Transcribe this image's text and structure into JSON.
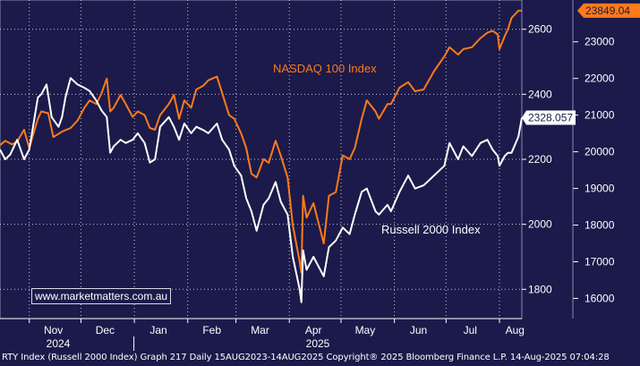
{
  "chart_data": {
    "type": "line",
    "title": "",
    "x_months": [
      "Nov",
      "Dec",
      "Jan",
      "Feb",
      "Mar",
      "Apr",
      "May",
      "Jun",
      "Jul",
      "Aug"
    ],
    "x_years": [
      "2024",
      "2025"
    ],
    "date_range": [
      "2024-10-15",
      "2025-08-14"
    ],
    "y_left": {
      "ticks": [
        1800,
        2000,
        2200,
        2400,
        2600
      ],
      "range": [
        1710,
        2690
      ]
    },
    "y_right": {
      "ticks": [
        16000,
        17000,
        18000,
        19000,
        20000,
        21000,
        22000,
        23000
      ],
      "range": [
        15450,
        24140
      ]
    },
    "grid": true,
    "series": [
      {
        "name": "NASDAQ 100 Index",
        "axis": "right",
        "color": "#ff7a1a",
        "last_value_label": "23849.04",
        "points": [
          [
            "2024-10-15",
            20180
          ],
          [
            "2024-10-18",
            20300
          ],
          [
            "2024-10-22",
            20200
          ],
          [
            "2024-10-25",
            20280
          ],
          [
            "2024-10-29",
            20600
          ],
          [
            "2024-11-01",
            20100
          ],
          [
            "2024-11-06",
            20900
          ],
          [
            "2024-11-08",
            21100
          ],
          [
            "2024-11-12",
            21050
          ],
          [
            "2024-11-15",
            20400
          ],
          [
            "2024-11-20",
            20550
          ],
          [
            "2024-11-25",
            20650
          ],
          [
            "2024-11-29",
            20850
          ],
          [
            "2024-12-03",
            21200
          ],
          [
            "2024-12-06",
            21400
          ],
          [
            "2024-12-10",
            21300
          ],
          [
            "2024-12-13",
            21600
          ],
          [
            "2024-12-16",
            22000
          ],
          [
            "2024-12-18",
            21100
          ],
          [
            "2024-12-20",
            21200
          ],
          [
            "2024-12-24",
            21550
          ],
          [
            "2024-12-27",
            21300
          ],
          [
            "2024-12-31",
            20950
          ],
          [
            "2025-01-03",
            21100
          ],
          [
            "2025-01-07",
            21000
          ],
          [
            "2025-01-10",
            20650
          ],
          [
            "2025-01-13",
            20600
          ],
          [
            "2025-01-16",
            21000
          ],
          [
            "2025-01-21",
            21300
          ],
          [
            "2025-01-24",
            21550
          ],
          [
            "2025-01-27",
            20900
          ],
          [
            "2025-01-30",
            21400
          ],
          [
            "2025-02-03",
            21200
          ],
          [
            "2025-02-06",
            21700
          ],
          [
            "2025-02-10",
            21800
          ],
          [
            "2025-02-13",
            21950
          ],
          [
            "2025-02-18",
            22050
          ],
          [
            "2025-02-21",
            21600
          ],
          [
            "2025-02-25",
            21000
          ],
          [
            "2025-02-28",
            20900
          ],
          [
            "2025-03-04",
            20500
          ],
          [
            "2025-03-07",
            20100
          ],
          [
            "2025-03-10",
            19400
          ],
          [
            "2025-03-13",
            19300
          ],
          [
            "2025-03-17",
            19800
          ],
          [
            "2025-03-20",
            19700
          ],
          [
            "2025-03-24",
            20300
          ],
          [
            "2025-03-27",
            19900
          ],
          [
            "2025-03-31",
            19300
          ],
          [
            "2025-04-03",
            18000
          ],
          [
            "2025-04-07",
            17000
          ],
          [
            "2025-04-08",
            16700
          ],
          [
            "2025-04-09",
            18800
          ],
          [
            "2025-04-11",
            18200
          ],
          [
            "2025-04-15",
            18600
          ],
          [
            "2025-04-21",
            17500
          ],
          [
            "2025-04-24",
            18800
          ],
          [
            "2025-04-28",
            18900
          ],
          [
            "2025-05-02",
            19900
          ],
          [
            "2025-05-06",
            19800
          ],
          [
            "2025-05-09",
            20100
          ],
          [
            "2025-05-13",
            20900
          ],
          [
            "2025-05-16",
            21400
          ],
          [
            "2025-05-21",
            21100
          ],
          [
            "2025-05-23",
            20900
          ],
          [
            "2025-05-28",
            21300
          ],
          [
            "2025-05-30",
            21300
          ],
          [
            "2025-06-04",
            21750
          ],
          [
            "2025-06-09",
            21900
          ],
          [
            "2025-06-13",
            21650
          ],
          [
            "2025-06-18",
            21700
          ],
          [
            "2025-06-24",
            22200
          ],
          [
            "2025-06-30",
            22600
          ],
          [
            "2025-07-03",
            22850
          ],
          [
            "2025-07-08",
            22650
          ],
          [
            "2025-07-11",
            22800
          ],
          [
            "2025-07-16",
            22850
          ],
          [
            "2025-07-21",
            23100
          ],
          [
            "2025-07-25",
            23250
          ],
          [
            "2025-07-28",
            23300
          ],
          [
            "2025-07-31",
            23200
          ],
          [
            "2025-08-01",
            22800
          ],
          [
            "2025-08-04",
            23150
          ],
          [
            "2025-08-06",
            23350
          ],
          [
            "2025-08-08",
            23650
          ],
          [
            "2025-08-12",
            23850
          ],
          [
            "2025-08-14",
            23849.04
          ]
        ]
      },
      {
        "name": "Russell 2000 Index",
        "axis": "left",
        "color": "#ffffff",
        "last_value_label": "2328.057",
        "points": [
          [
            "2024-10-15",
            2230
          ],
          [
            "2024-10-18",
            2200
          ],
          [
            "2024-10-21",
            2215
          ],
          [
            "2024-10-25",
            2260
          ],
          [
            "2024-10-29",
            2200
          ],
          [
            "2024-11-01",
            2230
          ],
          [
            "2024-11-06",
            2390
          ],
          [
            "2024-11-08",
            2400
          ],
          [
            "2024-11-11",
            2430
          ],
          [
            "2024-11-14",
            2330
          ],
          [
            "2024-11-18",
            2300
          ],
          [
            "2024-11-20",
            2330
          ],
          [
            "2024-11-22",
            2390
          ],
          [
            "2024-11-25",
            2450
          ],
          [
            "2024-11-27",
            2440
          ],
          [
            "2024-11-29",
            2430
          ],
          [
            "2024-12-03",
            2420
          ],
          [
            "2024-12-06",
            2410
          ],
          [
            "2024-12-10",
            2380
          ],
          [
            "2024-12-13",
            2350
          ],
          [
            "2024-12-16",
            2330
          ],
          [
            "2024-12-18",
            2220
          ],
          [
            "2024-12-20",
            2240
          ],
          [
            "2024-12-24",
            2260
          ],
          [
            "2024-12-27",
            2250
          ],
          [
            "2024-12-31",
            2260
          ],
          [
            "2025-01-03",
            2280
          ],
          [
            "2025-01-07",
            2250
          ],
          [
            "2025-01-10",
            2190
          ],
          [
            "2025-01-13",
            2200
          ],
          [
            "2025-01-16",
            2300
          ],
          [
            "2025-01-21",
            2330
          ],
          [
            "2025-01-24",
            2300
          ],
          [
            "2025-01-27",
            2260
          ],
          [
            "2025-01-30",
            2310
          ],
          [
            "2025-02-03",
            2280
          ],
          [
            "2025-02-06",
            2300
          ],
          [
            "2025-02-10",
            2290
          ],
          [
            "2025-02-13",
            2280
          ],
          [
            "2025-02-18",
            2310
          ],
          [
            "2025-02-21",
            2260
          ],
          [
            "2025-02-25",
            2230
          ],
          [
            "2025-02-28",
            2180
          ],
          [
            "2025-03-04",
            2150
          ],
          [
            "2025-03-07",
            2080
          ],
          [
            "2025-03-10",
            2040
          ],
          [
            "2025-03-13",
            1980
          ],
          [
            "2025-03-17",
            2060
          ],
          [
            "2025-03-20",
            2080
          ],
          [
            "2025-03-24",
            2130
          ],
          [
            "2025-03-27",
            2070
          ],
          [
            "2025-03-31",
            2030
          ],
          [
            "2025-04-03",
            1900
          ],
          [
            "2025-04-07",
            1800
          ],
          [
            "2025-04-08",
            1760
          ],
          [
            "2025-04-09",
            1920
          ],
          [
            "2025-04-11",
            1860
          ],
          [
            "2025-04-15",
            1900
          ],
          [
            "2025-04-21",
            1840
          ],
          [
            "2025-04-24",
            1930
          ],
          [
            "2025-04-28",
            1950
          ],
          [
            "2025-05-02",
            1990
          ],
          [
            "2025-05-06",
            1970
          ],
          [
            "2025-05-09",
            2030
          ],
          [
            "2025-05-13",
            2100
          ],
          [
            "2025-05-16",
            2110
          ],
          [
            "2025-05-21",
            2040
          ],
          [
            "2025-05-23",
            2030
          ],
          [
            "2025-05-28",
            2060
          ],
          [
            "2025-05-30",
            2040
          ],
          [
            "2025-06-04",
            2100
          ],
          [
            "2025-06-09",
            2150
          ],
          [
            "2025-06-13",
            2110
          ],
          [
            "2025-06-18",
            2120
          ],
          [
            "2025-06-24",
            2150
          ],
          [
            "2025-06-30",
            2180
          ],
          [
            "2025-07-03",
            2250
          ],
          [
            "2025-07-08",
            2200
          ],
          [
            "2025-07-11",
            2240
          ],
          [
            "2025-07-16",
            2210
          ],
          [
            "2025-07-21",
            2250
          ],
          [
            "2025-07-25",
            2260
          ],
          [
            "2025-07-28",
            2230
          ],
          [
            "2025-07-31",
            2210
          ],
          [
            "2025-08-01",
            2180
          ],
          [
            "2025-08-04",
            2210
          ],
          [
            "2025-08-06",
            2220
          ],
          [
            "2025-08-08",
            2220
          ],
          [
            "2025-08-12",
            2270
          ],
          [
            "2025-08-14",
            2328.057
          ]
        ]
      }
    ]
  },
  "watermark": "www.marketmatters.com.au",
  "footer": "RTY Index (Russell 2000 Index) Graph 217  Daily 15AUG2023-14AUG2025 Copyright® 2025 Bloomberg Finance L.P. 14-Aug-2025 07:04:28",
  "colors": {
    "background": "#1b1a4a",
    "grid": "#c9c9d9",
    "nasdaq": "#ff7a1a",
    "russell": "#ffffff"
  }
}
